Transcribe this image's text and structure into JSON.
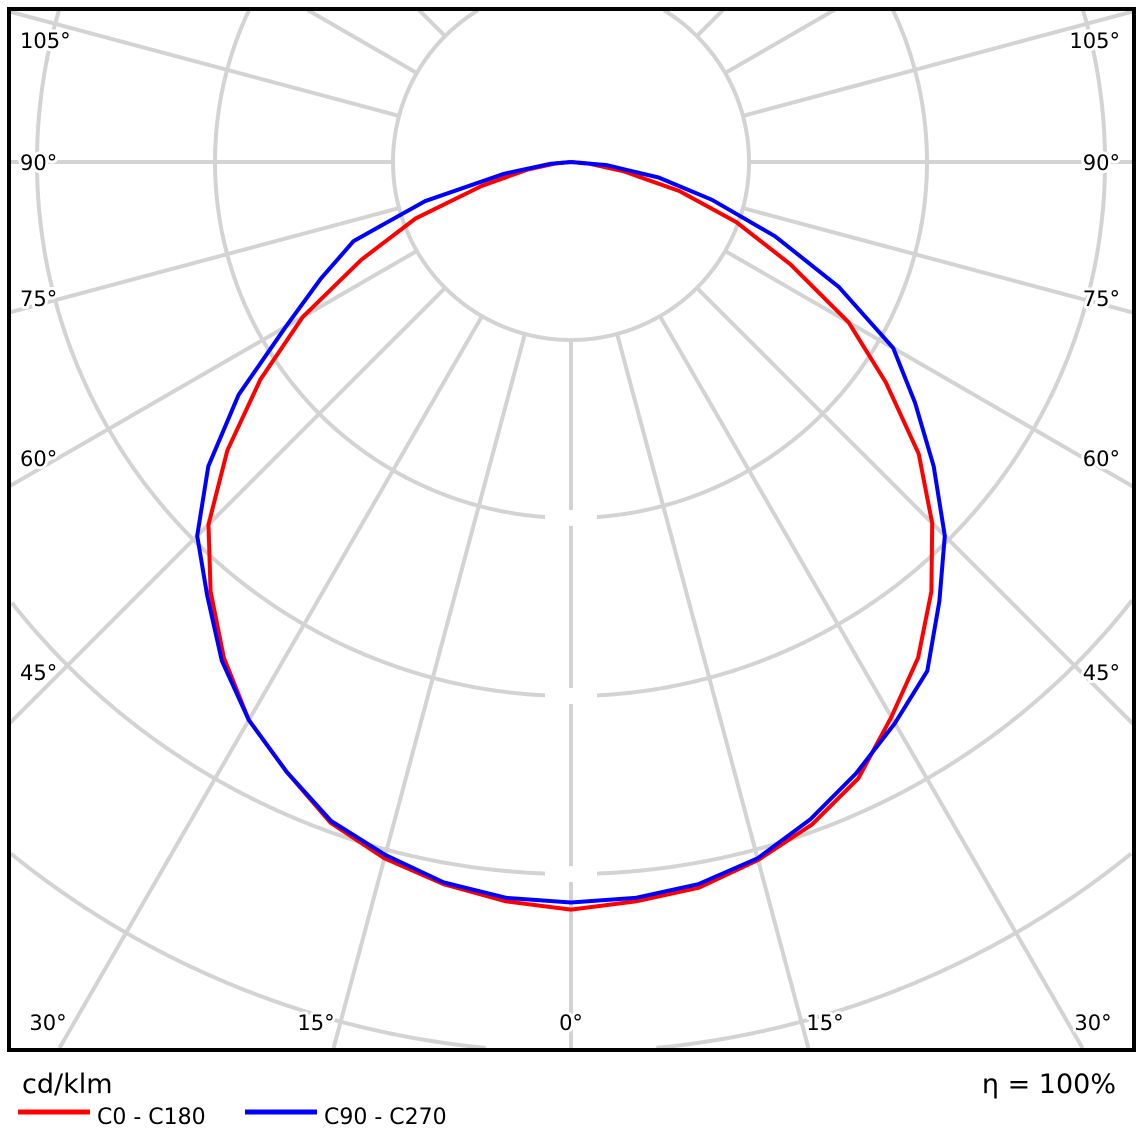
{
  "chart_data": {
    "type": "polar",
    "unit": "cd/klm",
    "efficiency": "η = 100%",
    "grid": true,
    "angle_labels": {
      "left": [
        "105°",
        "90°",
        "75°",
        "60°",
        "45°"
      ],
      "right": [
        "105°",
        "90°",
        "75°",
        "60°",
        "45°"
      ],
      "bottom": [
        "30°",
        "15°",
        "0°",
        "15°",
        "30°"
      ]
    },
    "gamma_deg": [
      0,
      5,
      10,
      15,
      20,
      25,
      30,
      35,
      40,
      45,
      50,
      55,
      60,
      65,
      70,
      75,
      80,
      85,
      90
    ],
    "radial_unit": "grid rings (unlabeled)",
    "series": [
      {
        "name": "C0 - C180",
        "color": "#ff0000",
        "left_values": [
          4.2,
          4.17,
          4.12,
          4.05,
          3.95,
          3.78,
          3.62,
          3.4,
          3.15,
          2.88,
          2.52,
          2.13,
          1.74,
          1.3,
          0.93,
          0.52,
          0.25,
          0.08,
          0
        ],
        "right_values": [
          4.2,
          4.17,
          4.14,
          4.06,
          3.96,
          3.82,
          3.6,
          3.4,
          3.15,
          2.87,
          2.55,
          2.16,
          1.8,
          1.36,
          0.99,
          0.63,
          0.3,
          0.1,
          0
        ]
      },
      {
        "name": "C90 - C270",
        "color": "#0000ff",
        "left_values": [
          4.16,
          4.15,
          4.11,
          4.03,
          3.94,
          3.78,
          3.62,
          3.42,
          3.18,
          2.97,
          2.66,
          2.28,
          1.85,
          1.55,
          1.3,
          0.85,
          0.38,
          0.12,
          0
        ],
        "right_values": [
          4.16,
          4.15,
          4.12,
          4.05,
          3.93,
          3.79,
          3.64,
          3.49,
          3.22,
          2.97,
          2.66,
          2.36,
          2.09,
          1.66,
          1.22,
          0.82,
          0.5,
          0.2,
          0
        ]
      }
    ]
  }
}
